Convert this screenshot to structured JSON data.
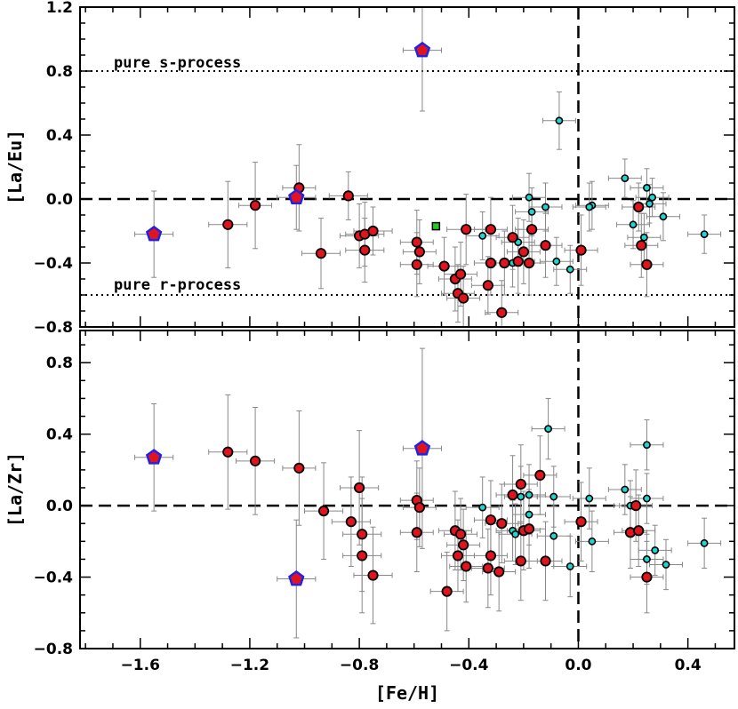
{
  "chart_data": {
    "type": "scatter",
    "x_label": "[Fe/H]",
    "x_ticks": [
      "−1.6",
      "−1.2",
      "−0.8",
      "−0.4",
      "0.0",
      "0.4"
    ],
    "x_tick_values": [
      -1.6,
      -1.2,
      -0.8,
      -0.4,
      0.0,
      0.4
    ],
    "xlim": [
      -1.82,
      0.57
    ],
    "colors": {
      "red_fill": "#e0141e",
      "cyan_fill": "#22d4d0",
      "green_fill": "#28c828",
      "pentagon_stroke": "#1a22ee",
      "errorbar": "#888888"
    },
    "panels": [
      {
        "id": "top",
        "ylabel": "[La/Eu]",
        "ylim": [
          -0.8,
          1.2
        ],
        "y_ticks": [
          "−0.8",
          "−0.4",
          "0.0",
          "0.4",
          "0.8",
          "1.2"
        ],
        "y_tick_values": [
          -0.8,
          -0.4,
          0.0,
          0.4,
          0.8,
          1.2
        ],
        "hlines": [
          {
            "y": 0.0,
            "style": "dashed"
          },
          {
            "y": 0.8,
            "style": "dotted",
            "label": "pure s-process"
          },
          {
            "y": -0.6,
            "style": "dotted",
            "label": "pure r-process"
          }
        ],
        "vline": {
          "x": 0.0,
          "style": "dashed"
        },
        "series": [
          {
            "name": "pentagons",
            "marker": "pentagon",
            "points": [
              [
                -1.55,
                -0.22,
                0.07,
                0.27,
                0.27
              ],
              [
                -1.03,
                0.01,
                0.07,
                0.2,
                0.2
              ],
              [
                -0.57,
                0.93,
                0.07,
                0.38,
                0.38
              ]
            ]
          },
          {
            "name": "red",
            "marker": "circle-red",
            "points": [
              [
                -1.28,
                -0.16,
                0.07,
                0.27,
                0.27
              ],
              [
                -1.18,
                -0.04,
                0.06,
                0.27,
                0.27
              ],
              [
                -1.02,
                0.07,
                0.06,
                0.27,
                0.27
              ],
              [
                -0.94,
                -0.34,
                0.07,
                0.22,
                0.22
              ],
              [
                -0.84,
                0.02,
                0.07,
                0.15,
                0.15
              ],
              [
                -0.8,
                -0.23,
                0.07,
                0.2,
                0.2
              ],
              [
                -0.78,
                -0.22,
                0.07,
                0.2,
                0.2
              ],
              [
                -0.78,
                -0.32,
                0.07,
                0.2,
                0.2
              ],
              [
                -0.75,
                -0.2,
                0.07,
                0.15,
                0.15
              ],
              [
                -0.59,
                -0.27,
                0.06,
                0.2,
                0.2
              ],
              [
                -0.58,
                -0.33,
                0.06,
                0.2,
                0.2
              ],
              [
                -0.59,
                -0.41,
                0.06,
                0.2,
                0.2
              ],
              [
                -0.49,
                -0.42,
                0.06,
                0.18,
                0.18
              ],
              [
                -0.45,
                -0.5,
                0.06,
                0.2,
                0.2
              ],
              [
                -0.43,
                -0.47,
                0.06,
                0.2,
                0.2
              ],
              [
                -0.44,
                -0.59,
                0.06,
                0.18,
                0.18
              ],
              [
                -0.42,
                -0.62,
                0.06,
                0.2,
                0.2
              ],
              [
                -0.41,
                -0.19,
                0.07,
                0.22,
                0.22
              ],
              [
                -0.33,
                -0.54,
                0.06,
                0.18,
                0.18
              ],
              [
                -0.32,
                -0.19,
                0.06,
                0.2,
                0.2
              ],
              [
                -0.32,
                -0.4,
                0.06,
                0.2,
                0.2
              ],
              [
                -0.28,
                -0.71,
                0.06,
                0.2,
                0.2
              ],
              [
                -0.27,
                -0.4,
                0.06,
                0.2,
                0.2
              ],
              [
                -0.24,
                -0.24,
                0.06,
                0.2,
                0.2
              ],
              [
                -0.22,
                -0.39,
                0.06,
                0.2,
                0.2
              ],
              [
                -0.2,
                -0.33,
                0.06,
                0.2,
                0.2
              ],
              [
                -0.18,
                -0.4,
                0.06,
                0.2,
                0.2
              ],
              [
                -0.17,
                -0.19,
                0.06,
                0.2,
                0.2
              ],
              [
                -0.12,
                -0.29,
                0.06,
                0.2,
                0.2
              ],
              [
                0.01,
                -0.32,
                0.06,
                0.22,
                0.22
              ],
              [
                0.22,
                -0.05,
                0.06,
                0.15,
                0.15
              ],
              [
                0.23,
                -0.29,
                0.06,
                0.2,
                0.2
              ],
              [
                0.25,
                -0.41,
                0.06,
                0.2,
                0.2
              ]
            ]
          },
          {
            "name": "cyan",
            "marker": "circle-cyan",
            "points": [
              [
                -0.07,
                0.49,
                0.06,
                0.18,
                0.18
              ],
              [
                -0.35,
                -0.23,
                0.06,
                0.15,
                0.15
              ],
              [
                -0.24,
                -0.4,
                0.06,
                0.15,
                0.15
              ],
              [
                -0.22,
                -0.27,
                0.06,
                0.15,
                0.15
              ],
              [
                -0.18,
                0.01,
                0.06,
                0.15,
                0.15
              ],
              [
                -0.17,
                -0.08,
                0.06,
                0.15,
                0.15
              ],
              [
                -0.12,
                -0.05,
                0.06,
                0.15,
                0.15
              ],
              [
                -0.08,
                -0.39,
                0.06,
                0.15,
                0.15
              ],
              [
                -0.03,
                -0.44,
                0.06,
                0.15,
                0.15
              ],
              [
                0.05,
                -0.04,
                0.06,
                0.15,
                0.15
              ],
              [
                0.04,
                -0.05,
                0.06,
                0.15,
                0.15
              ],
              [
                0.17,
                0.13,
                0.06,
                0.12,
                0.12
              ],
              [
                0.2,
                -0.16,
                0.06,
                0.15,
                0.15
              ],
              [
                0.25,
                0.07,
                0.06,
                0.12,
                0.12
              ],
              [
                0.27,
                0.01,
                0.06,
                0.12,
                0.12
              ],
              [
                0.24,
                -0.24,
                0.06,
                0.15,
                0.15
              ],
              [
                0.26,
                -0.03,
                0.06,
                0.12,
                0.12
              ],
              [
                0.31,
                -0.11,
                0.06,
                0.15,
                0.15
              ],
              [
                0.46,
                -0.22,
                0.06,
                0.12,
                0.12
              ]
            ]
          },
          {
            "name": "green",
            "marker": "square-green",
            "points": [
              [
                -0.52,
                -0.17,
                0,
                0,
                0
              ]
            ]
          }
        ]
      },
      {
        "id": "bottom",
        "ylabel": "[La/Zr]",
        "ylim": [
          -0.8,
          0.98
        ],
        "y_ticks": [
          "−0.8",
          "−0.4",
          "0.0",
          "0.4",
          "0.8"
        ],
        "y_tick_values": [
          -0.8,
          -0.4,
          0.0,
          0.4,
          0.8
        ],
        "hlines": [
          {
            "y": 0.0,
            "style": "dashed"
          }
        ],
        "vline": {
          "x": 0.0,
          "style": "dashed"
        },
        "series": [
          {
            "name": "pentagons",
            "marker": "pentagon",
            "points": [
              [
                -1.55,
                0.27,
                0.07,
                0.3,
                0.3
              ],
              [
                -1.03,
                -0.41,
                0.07,
                0.33,
                0.33
              ],
              [
                -0.57,
                0.32,
                0.07,
                0.56,
                0.56
              ]
            ]
          },
          {
            "name": "red",
            "marker": "circle-red",
            "points": [
              [
                -1.28,
                0.3,
                0.07,
                0.32,
                0.32
              ],
              [
                -1.18,
                0.25,
                0.07,
                0.3,
                0.3
              ],
              [
                -1.02,
                0.21,
                0.06,
                0.32,
                0.32
              ],
              [
                -0.93,
                -0.03,
                0.07,
                0.27,
                0.27
              ],
              [
                -0.83,
                -0.09,
                0.07,
                0.25,
                0.25
              ],
              [
                -0.8,
                0.1,
                0.07,
                0.32,
                0.32
              ],
              [
                -0.79,
                -0.16,
                0.07,
                0.32,
                0.32
              ],
              [
                -0.79,
                -0.28,
                0.07,
                0.32,
                0.32
              ],
              [
                -0.75,
                -0.39,
                0.07,
                0.27,
                0.27
              ],
              [
                -0.59,
                0.03,
                0.06,
                0.22,
                0.22
              ],
              [
                -0.58,
                -0.01,
                0.06,
                0.22,
                0.22
              ],
              [
                -0.59,
                -0.15,
                0.06,
                0.22,
                0.22
              ],
              [
                -0.48,
                -0.48,
                0.06,
                0.22,
                0.22
              ],
              [
                -0.45,
                -0.14,
                0.06,
                0.22,
                0.22
              ],
              [
                -0.44,
                -0.28,
                0.06,
                0.2,
                0.2
              ],
              [
                -0.43,
                -0.16,
                0.06,
                0.2,
                0.2
              ],
              [
                -0.42,
                -0.22,
                0.06,
                0.2,
                0.2
              ],
              [
                -0.41,
                -0.34,
                0.06,
                0.2,
                0.2
              ],
              [
                -0.33,
                -0.35,
                0.06,
                0.22,
                0.22
              ],
              [
                -0.32,
                -0.08,
                0.06,
                0.22,
                0.22
              ],
              [
                -0.32,
                -0.28,
                0.06,
                0.22,
                0.22
              ],
              [
                -0.29,
                -0.37,
                0.06,
                0.22,
                0.22
              ],
              [
                -0.28,
                -0.1,
                0.06,
                0.22,
                0.22
              ],
              [
                -0.24,
                0.06,
                0.06,
                0.22,
                0.22
              ],
              [
                -0.21,
                0.12,
                0.06,
                0.22,
                0.22
              ],
              [
                -0.21,
                -0.31,
                0.06,
                0.22,
                0.22
              ],
              [
                -0.2,
                -0.14,
                0.06,
                0.22,
                0.22
              ],
              [
                -0.18,
                -0.13,
                0.06,
                0.22,
                0.22
              ],
              [
                -0.14,
                0.17,
                0.06,
                0.22,
                0.22
              ],
              [
                -0.12,
                -0.31,
                0.06,
                0.22,
                0.22
              ],
              [
                0.01,
                -0.09,
                0.06,
                0.22,
                0.22
              ],
              [
                0.19,
                -0.15,
                0.06,
                0.2,
                0.2
              ],
              [
                0.21,
                0.0,
                0.06,
                0.2,
                0.2
              ],
              [
                0.22,
                -0.14,
                0.06,
                0.2,
                0.2
              ],
              [
                0.25,
                -0.4,
                0.06,
                0.2,
                0.2
              ]
            ]
          },
          {
            "name": "cyan",
            "marker": "circle-cyan",
            "points": [
              [
                -0.11,
                0.43,
                0.06,
                0.17,
                0.17
              ],
              [
                -0.35,
                -0.01,
                0.06,
                0.17,
                0.17
              ],
              [
                -0.24,
                -0.14,
                0.06,
                0.17,
                0.17
              ],
              [
                -0.23,
                -0.16,
                0.06,
                0.17,
                0.17
              ],
              [
                -0.21,
                0.05,
                0.06,
                0.17,
                0.17
              ],
              [
                -0.18,
                0.06,
                0.06,
                0.17,
                0.17
              ],
              [
                -0.18,
                -0.05,
                0.06,
                0.17,
                0.17
              ],
              [
                -0.09,
                0.05,
                0.06,
                0.17,
                0.17
              ],
              [
                -0.09,
                -0.17,
                0.06,
                0.17,
                0.17
              ],
              [
                -0.03,
                -0.34,
                0.06,
                0.17,
                0.17
              ],
              [
                0.04,
                0.04,
                0.06,
                0.17,
                0.17
              ],
              [
                0.05,
                -0.2,
                0.06,
                0.17,
                0.17
              ],
              [
                0.17,
                0.09,
                0.06,
                0.14,
                0.14
              ],
              [
                0.19,
                0.0,
                0.06,
                0.14,
                0.14
              ],
              [
                0.25,
                0.34,
                0.06,
                0.14,
                0.14
              ],
              [
                0.25,
                0.04,
                0.06,
                0.14,
                0.14
              ],
              [
                0.25,
                -0.3,
                0.06,
                0.14,
                0.14
              ],
              [
                0.28,
                -0.25,
                0.06,
                0.14,
                0.14
              ],
              [
                0.32,
                -0.33,
                0.06,
                0.14,
                0.14
              ],
              [
                0.46,
                -0.21,
                0.06,
                0.14,
                0.14
              ]
            ]
          }
        ]
      }
    ],
    "annotations": {
      "s_process": "pure s-process",
      "r_process": "pure r-process"
    }
  }
}
